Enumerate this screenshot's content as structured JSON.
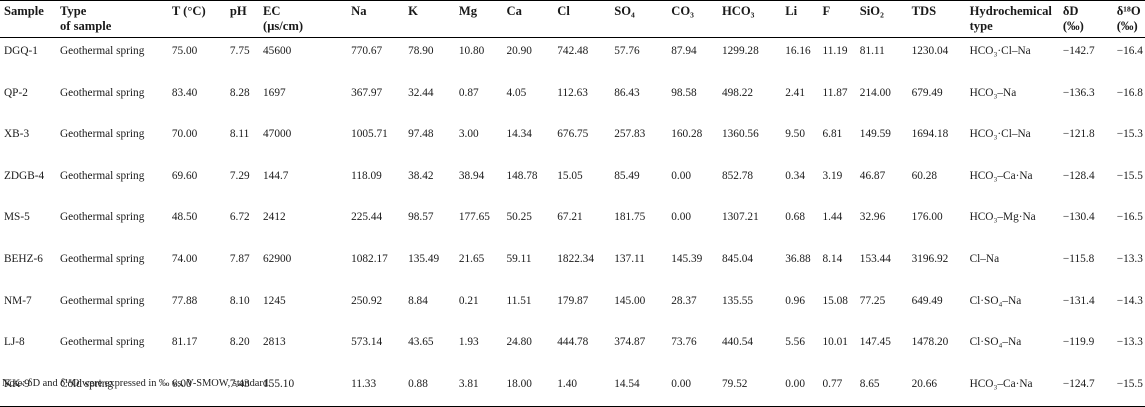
{
  "header": {
    "sample": "Sample",
    "type": "Type\nof sample",
    "t": "T (°C)",
    "ph": "pH",
    "ec": "EC\n(μs/cm)",
    "na": "Na",
    "k": "K",
    "mg": "Mg",
    "ca": "Ca",
    "cl": "Cl",
    "so4": "SO₄",
    "co3": "CO₃",
    "hco3": "HCO₃",
    "li": "Li",
    "f": "F",
    "sio2": "SiO₂",
    "tds": "TDS",
    "hydro": "Hydrochemical\ntype",
    "dd": "δD\n(‰)",
    "d18o": "δ¹⁸O\n(‰)"
  },
  "rows": [
    {
      "sample": "DGQ-1",
      "type": "Geothermal spring",
      "t": "75.00",
      "ph": "7.75",
      "ec": "45600",
      "na": "770.67",
      "k": "78.90",
      "mg": "10.80",
      "ca": "20.90",
      "cl": "742.48",
      "so4": "57.76",
      "co3": "87.94",
      "hco3": "1299.28",
      "li": "16.16",
      "f": "11.19",
      "sio2": "81.11",
      "tds": "1230.04",
      "hydro": "HCO₃·Cl–Na",
      "dd": "−142.7",
      "d18o": "−16.4"
    },
    {
      "sample": "QP-2",
      "type": "Geothermal spring",
      "t": "83.40",
      "ph": "8.28",
      "ec": "1697",
      "na": "367.97",
      "k": "32.44",
      "mg": "0.87",
      "ca": "4.05",
      "cl": "112.63",
      "so4": "86.43",
      "co3": "98.58",
      "hco3": "498.22",
      "li": "2.41",
      "f": "11.87",
      "sio2": "214.00",
      "tds": "679.49",
      "hydro": "HCO₃–Na",
      "dd": "−136.3",
      "d18o": "−16.8"
    },
    {
      "sample": "XB-3",
      "type": "Geothermal spring",
      "t": "70.00",
      "ph": "8.11",
      "ec": "47000",
      "na": "1005.71",
      "k": "97.48",
      "mg": "3.00",
      "ca": "14.34",
      "cl": "676.75",
      "so4": "257.83",
      "co3": "160.28",
      "hco3": "1360.56",
      "li": "9.50",
      "f": "6.81",
      "sio2": "149.59",
      "tds": "1694.18",
      "hydro": "HCO₃·Cl–Na",
      "dd": "−121.8",
      "d18o": "−15.3"
    },
    {
      "sample": "ZDGB-4",
      "type": "Geothermal spring",
      "t": "69.60",
      "ph": "7.29",
      "ec": "144.7",
      "na": "118.09",
      "k": "38.42",
      "mg": "38.94",
      "ca": "148.78",
      "cl": "15.05",
      "so4": "85.49",
      "co3": "0.00",
      "hco3": "852.78",
      "li": "0.34",
      "f": "3.19",
      "sio2": "46.87",
      "tds": "60.28",
      "hydro": "HCO₃–Ca·Na",
      "dd": "−128.4",
      "d18o": "−15.5"
    },
    {
      "sample": "MS-5",
      "type": "Geothermal spring",
      "t": "48.50",
      "ph": "6.72",
      "ec": "2412",
      "na": "225.44",
      "k": "98.57",
      "mg": "177.65",
      "ca": "50.25",
      "cl": "67.21",
      "so4": "181.75",
      "co3": "0.00",
      "hco3": "1307.21",
      "li": "0.68",
      "f": "1.44",
      "sio2": "32.96",
      "tds": "176.00",
      "hydro": "HCO₃–Mg·Na",
      "dd": "−130.4",
      "d18o": "−16.5"
    },
    {
      "sample": "BEHZ-6",
      "type": "Geothermal spring",
      "t": "74.00",
      "ph": "7.87",
      "ec": "62900",
      "na": "1082.17",
      "k": "135.49",
      "mg": "21.65",
      "ca": "59.11",
      "cl": "1822.34",
      "so4": "137.11",
      "co3": "145.39",
      "hco3": "845.04",
      "li": "36.88",
      "f": "8.14",
      "sio2": "153.44",
      "tds": "3196.92",
      "hydro": "Cl–Na",
      "dd": "−115.8",
      "d18o": "−13.3"
    },
    {
      "sample": "NM-7",
      "type": "Geothermal spring",
      "t": "77.88",
      "ph": "8.10",
      "ec": "1245",
      "na": "250.92",
      "k": "8.84",
      "mg": "0.21",
      "ca": "11.51",
      "cl": "179.87",
      "so4": "145.00",
      "co3": "28.37",
      "hco3": "135.55",
      "li": "0.96",
      "f": "15.08",
      "sio2": "77.25",
      "tds": "649.49",
      "hydro": "Cl·SO₄–Na",
      "dd": "−131.4",
      "d18o": "−14.3"
    },
    {
      "sample": "LJ-8",
      "type": "Geothermal spring",
      "t": "81.17",
      "ph": "8.20",
      "ec": "2813",
      "na": "573.14",
      "k": "43.65",
      "mg": "1.93",
      "ca": "24.80",
      "cl": "444.78",
      "so4": "374.87",
      "co3": "73.76",
      "hco3": "440.54",
      "li": "5.56",
      "f": "10.01",
      "sio2": "147.45",
      "tds": "1478.20",
      "hydro": "Cl·SO₄–Na",
      "dd": "−119.9",
      "d18o": "−13.3"
    },
    {
      "sample": "KK-9",
      "type": "Cold spring",
      "t": "6.00",
      "ph": "7.43",
      "ec": "155.10",
      "na": "11.33",
      "k": "0.88",
      "mg": "3.81",
      "ca": "18.00",
      "cl": "1.40",
      "so4": "14.54",
      "co3": "0.00",
      "hco3": "79.52",
      "li": "0.00",
      "f": "0.77",
      "sio2": "8.65",
      "tds": "20.66",
      "hydro": "HCO₃–Ca·Na",
      "dd": "−124.7",
      "d18o": "−15.5"
    }
  ],
  "note": "Note: δD and δ¹⁸O were expressed in ‰ vs. V-SMOW, standard."
}
